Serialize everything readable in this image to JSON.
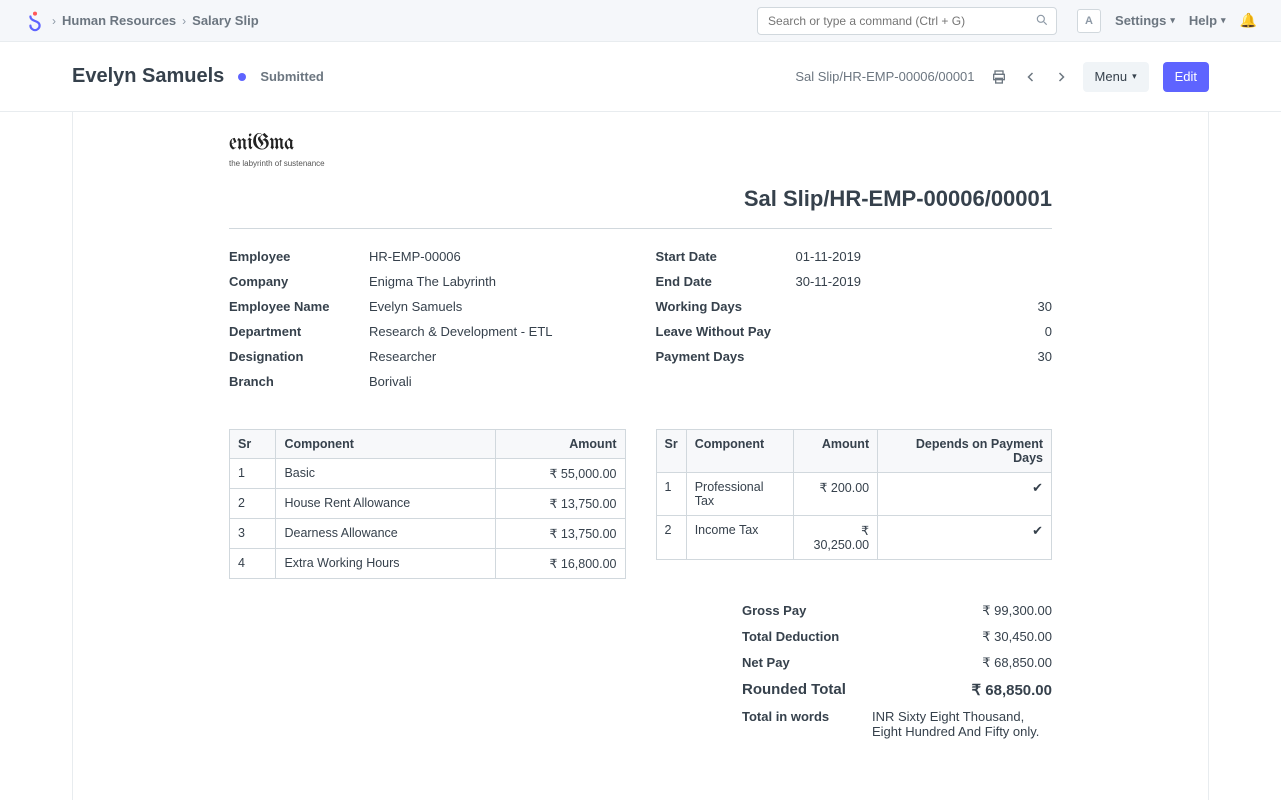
{
  "nav": {
    "breadcrumb": [
      "Human Resources",
      "Salary Slip"
    ],
    "search_placeholder": "Search or type a command (Ctrl + G)",
    "avatar_initial": "A",
    "settings_label": "Settings",
    "help_label": "Help"
  },
  "header": {
    "title": "Evelyn Samuels",
    "status": "Submitted",
    "status_color": "#5e64ff",
    "slip_id": "Sal Slip/HR-EMP-00006/00001",
    "menu_label": "Menu",
    "edit_label": "Edit"
  },
  "slip": {
    "company_logo_text": "eniGma",
    "company_tagline": "the labyrinth of sustenance",
    "title": "Sal Slip/HR-EMP-00006/00001",
    "left": {
      "Employee": "HR-EMP-00006",
      "Company": "Enigma The Labyrinth",
      "Employee Name": "Evelyn Samuels",
      "Department": "Research & Development - ETL",
      "Designation": "Researcher",
      "Branch": "Borivali"
    },
    "right": {
      "Start Date": "01-11-2019",
      "End Date": "30-11-2019",
      "Working Days": "30",
      "Leave Without Pay": "0",
      "Payment Days": "30"
    }
  },
  "earnings": {
    "headers": [
      "Sr",
      "Component",
      "Amount"
    ],
    "rows": [
      {
        "sr": "1",
        "component": "Basic",
        "amount": "₹ 55,000.00"
      },
      {
        "sr": "2",
        "component": "House Rent Allowance",
        "amount": "₹ 13,750.00"
      },
      {
        "sr": "3",
        "component": "Dearness Allowance",
        "amount": "₹ 13,750.00"
      },
      {
        "sr": "4",
        "component": "Extra Working Hours",
        "amount": "₹ 16,800.00"
      }
    ]
  },
  "deductions": {
    "headers": [
      "Sr",
      "Component",
      "Amount",
      "Depends on Payment Days"
    ],
    "rows": [
      {
        "sr": "1",
        "component": "Professional Tax",
        "amount": "₹ 200.00",
        "depends": true
      },
      {
        "sr": "2",
        "component": "Income Tax",
        "amount": "₹ 30,250.00",
        "depends": true
      }
    ]
  },
  "totals": {
    "Gross Pay": "₹ 99,300.00",
    "Total Deduction": "₹ 30,450.00",
    "Net Pay": "₹ 68,850.00",
    "Rounded Total": "₹ 68,850.00",
    "words_label": "Total in words",
    "words_value": "INR Sixty Eight Thousand, Eight Hundred And Fifty only."
  }
}
